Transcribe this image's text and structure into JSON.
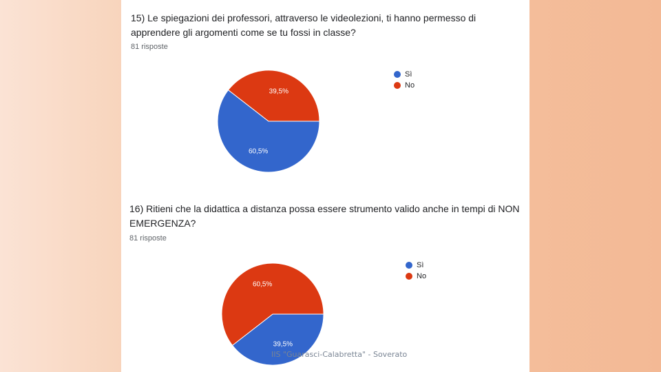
{
  "colors": {
    "si": "#3366cc",
    "no": "#dc3912"
  },
  "footer": "IIS \"Guarasci-Calabretta\" - Soverato",
  "legend": {
    "si": "Sì",
    "no": "No"
  },
  "chart_data": [
    {
      "type": "pie",
      "title": "15) Le spiegazioni dei professori, attraverso le videolezioni, ti hanno permesso di apprendere gli argomenti come se tu fossi in classe?",
      "subtitle": "81 risposte",
      "categories": [
        "Sì",
        "No"
      ],
      "values": [
        60.5,
        39.5
      ],
      "labels": [
        "60,5%",
        "39,5%"
      ],
      "legend_position": "right"
    },
    {
      "type": "pie",
      "title": "16) Ritieni che la didattica a distanza possa essere strumento valido anche in tempi di NON EMERGENZA?",
      "subtitle": "81 risposte",
      "categories": [
        "Sì",
        "No"
      ],
      "values": [
        39.5,
        60.5
      ],
      "labels": [
        "39,5%",
        "60,5%"
      ],
      "legend_position": "right"
    }
  ]
}
